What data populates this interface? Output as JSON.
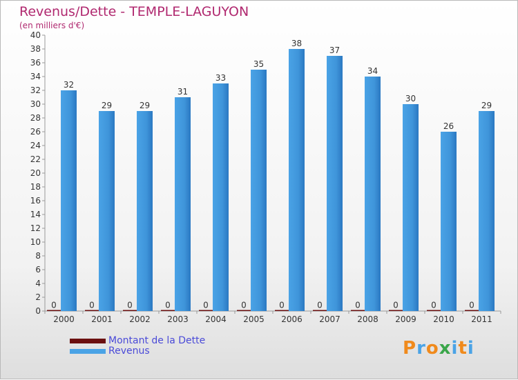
{
  "title": "Revenus/Dette - TEMPLE-LAGUYON",
  "subtitle": "(en milliers d'€)",
  "colors": {
    "dette": "#6b0f0f",
    "revenus": "#4aa3e6",
    "revenus_dark": "#2b78c2",
    "title": "#b0286f",
    "legend_text": "#4a4ad8"
  },
  "legend": [
    {
      "label": "Montant de la Dette",
      "color": "#6b0f0f"
    },
    {
      "label": "Revenus",
      "color": "#4aa3e6"
    }
  ],
  "logo": {
    "text": "Proxiti",
    "letters": [
      "P",
      "r",
      "o",
      "x",
      "i",
      "t",
      "i"
    ],
    "colors": [
      "#f08a1c",
      "#4aa3e6",
      "#f08a1c",
      "#3aa64a",
      "#4aa3e6",
      "#f08a1c",
      "#4aa3e6"
    ]
  },
  "chart_data": {
    "type": "bar",
    "title": "Revenus/Dette - TEMPLE-LAGUYON",
    "subtitle": "(en milliers d'€)",
    "categories": [
      "2000",
      "2001",
      "2002",
      "2003",
      "2004",
      "2005",
      "2006",
      "2007",
      "2008",
      "2009",
      "2010",
      "2011"
    ],
    "series": [
      {
        "name": "Montant de la Dette",
        "values": [
          0,
          0,
          0,
          0,
          0,
          0,
          0,
          0,
          0,
          0,
          0,
          0
        ]
      },
      {
        "name": "Revenus",
        "values": [
          32,
          29,
          29,
          31,
          33,
          35,
          38,
          37,
          34,
          30,
          26,
          29
        ]
      }
    ],
    "ylim": [
      0,
      40
    ],
    "yticks": [
      0,
      2,
      4,
      6,
      8,
      10,
      12,
      14,
      16,
      18,
      20,
      22,
      24,
      26,
      28,
      30,
      32,
      34,
      36,
      38,
      40
    ],
    "grid": false,
    "legend_position": "bottom-left"
  }
}
